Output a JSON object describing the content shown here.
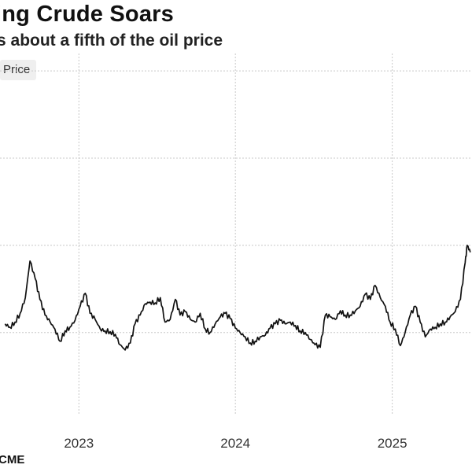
{
  "header": {
    "title": "ing Crude Soars",
    "subtitle": "s about a fifth of the oil price"
  },
  "legend": {
    "label": "Price"
  },
  "source": {
    "text": "CME"
  },
  "chart_data": {
    "type": "line",
    "title": "ing Crude Soars",
    "subtitle": "s about a fifth of the oil price",
    "xlabel": "",
    "ylabel": "",
    "x_ticks": [
      "2023",
      "2024",
      "2025"
    ],
    "grid": true,
    "legend_position": "top-left",
    "line_color": "#111111",
    "series": [
      {
        "name": "Price",
        "x": [
          "2022-07-13",
          "2022-07-24",
          "2022-08-05",
          "2022-08-17",
          "2022-08-29",
          "2022-09-09",
          "2022-09-21",
          "2022-10-02",
          "2022-10-14",
          "2022-10-26",
          "2022-11-06",
          "2022-11-18",
          "2022-11-30",
          "2022-12-11",
          "2022-12-23",
          "2023-01-04",
          "2023-01-16",
          "2023-01-27",
          "2023-02-08",
          "2023-02-20",
          "2023-03-03",
          "2023-03-15",
          "2023-03-27",
          "2023-04-07",
          "2023-04-19",
          "2023-05-01",
          "2023-05-12",
          "2023-05-24",
          "2023-06-05",
          "2023-06-16",
          "2023-06-28",
          "2023-07-10",
          "2023-07-21",
          "2023-08-02",
          "2023-08-14",
          "2023-08-25",
          "2023-09-06",
          "2023-09-18",
          "2023-09-29",
          "2023-10-11",
          "2023-10-23",
          "2023-11-03",
          "2023-11-15",
          "2023-11-27",
          "2023-12-08",
          "2023-12-20",
          "2024-01-01",
          "2024-01-12",
          "2024-01-24",
          "2024-02-05",
          "2024-02-16",
          "2024-02-28",
          "2024-03-11",
          "2024-03-22",
          "2024-04-03",
          "2024-04-15",
          "2024-04-26",
          "2024-05-08",
          "2024-05-20",
          "2024-05-31",
          "2024-06-12",
          "2024-06-24",
          "2024-07-05",
          "2024-07-17",
          "2024-07-29",
          "2024-08-09",
          "2024-08-21",
          "2024-09-02",
          "2024-09-13",
          "2024-09-25",
          "2024-10-07",
          "2024-10-18",
          "2024-10-30",
          "2024-11-11",
          "2024-11-22",
          "2024-12-04",
          "2024-12-16",
          "2024-12-27",
          "2025-01-08",
          "2025-01-20",
          "2025-01-31",
          "2025-02-12",
          "2025-02-24",
          "2025-03-07",
          "2025-03-19",
          "2025-03-31",
          "2025-04-11",
          "2025-04-23",
          "2025-05-05",
          "2025-05-16",
          "2025-05-28",
          "2025-06-09",
          "2025-06-20",
          "2025-06-25",
          "2025-07-02"
        ],
        "y": [
          0.1,
          0.06,
          0.12,
          0.22,
          0.4,
          0.82,
          0.62,
          0.38,
          0.2,
          0.12,
          0.04,
          -0.1,
          0.02,
          0.06,
          0.14,
          0.3,
          0.45,
          0.22,
          0.15,
          0.04,
          0.02,
          0.01,
          -0.02,
          -0.14,
          -0.2,
          -0.12,
          0.1,
          0.2,
          0.33,
          0.35,
          0.34,
          0.4,
          0.12,
          0.15,
          0.38,
          0.2,
          0.24,
          0.15,
          0.12,
          0.22,
          0.04,
          0.0,
          0.1,
          0.18,
          0.22,
          0.16,
          0.05,
          0.0,
          -0.05,
          -0.12,
          -0.1,
          -0.05,
          -0.03,
          0.05,
          0.1,
          0.14,
          0.1,
          0.12,
          0.08,
          0.02,
          0.0,
          -0.08,
          -0.14,
          -0.17,
          0.2,
          0.18,
          0.15,
          0.25,
          0.2,
          0.2,
          0.25,
          0.3,
          0.44,
          0.38,
          0.54,
          0.4,
          0.3,
          0.12,
          0.04,
          -0.15,
          0.0,
          0.2,
          0.3,
          0.12,
          -0.05,
          0.04,
          0.06,
          0.1,
          0.12,
          0.18,
          0.24,
          0.38,
          0.8,
          1.0,
          0.92
        ]
      }
    ]
  }
}
